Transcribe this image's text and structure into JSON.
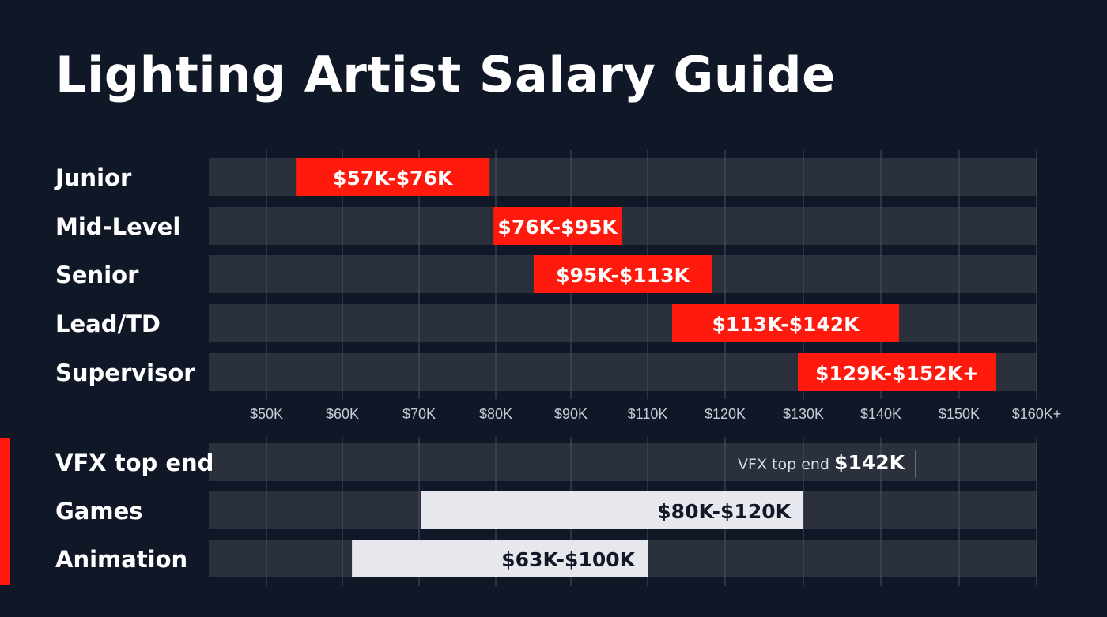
{
  "chart_data": {
    "type": "range-bar",
    "title": "Lighting Artist Salary Guide",
    "x_tick_labels": [
      "$50K",
      "$60K",
      "$70K",
      "$80K",
      "$90K",
      "$110K",
      "$120K",
      "$130K",
      "$140K",
      "$150K",
      "$160K+"
    ],
    "colors": {
      "background": "#101827",
      "track": "#2a303c",
      "grid": "#4a5160",
      "role_bar": "#ff1a0d",
      "industry_bar": "#e6e8ed",
      "role_text": "#ffffff",
      "industry_text": "#111827"
    },
    "roles": [
      {
        "label": "Junior",
        "low": 57,
        "high": 76,
        "text": "$57K-$76K"
      },
      {
        "label": "Mid-Level",
        "low": 76,
        "high": 95,
        "text": "$76K-$95K"
      },
      {
        "label": "Senior",
        "low": 95,
        "high": 113,
        "text": "$95K-$113K"
      },
      {
        "label": "Lead/TD",
        "low": 113,
        "high": 142,
        "text": "$113K-$142K"
      },
      {
        "label": "Supervisor",
        "low": 129,
        "high": 152,
        "text": "$129K-$152K+"
      }
    ],
    "industries": [
      {
        "label": "VFX top end",
        "kind": "marker",
        "value": 142,
        "caption": "VFX top end",
        "text": "$142K"
      },
      {
        "label": "Games",
        "kind": "range",
        "low": 80,
        "high": 120,
        "text": "$80K-$120K"
      },
      {
        "label": "Animation",
        "kind": "range",
        "low": 63,
        "high": 100,
        "text": "$63K-$100K"
      }
    ]
  }
}
